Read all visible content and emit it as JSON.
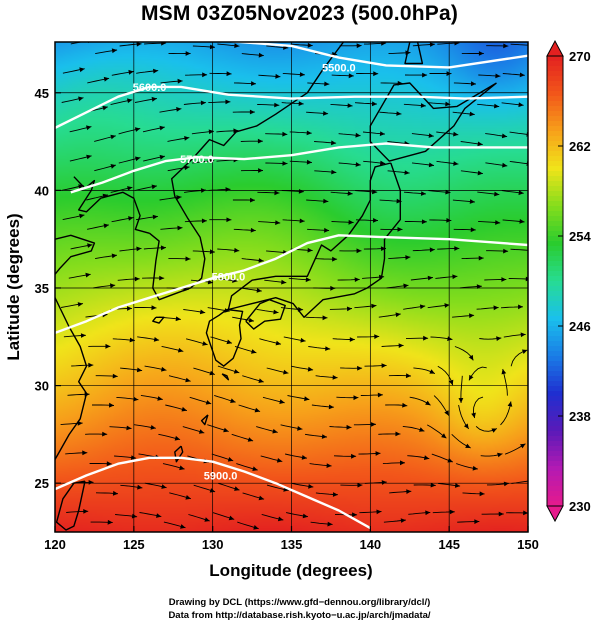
{
  "title": "MSM 03Z05Nov2023 (500.0hPa)",
  "map": {
    "xlabel": "Longitude (degrees)",
    "ylabel": "Latitude  (degrees)",
    "lon_range": [
      120,
      150
    ],
    "lat_range": [
      22.5,
      47.6
    ],
    "lon_ticks": [
      "120",
      "125",
      "130",
      "135",
      "140",
      "145",
      "150"
    ],
    "lat_ticks": [
      "25",
      "30",
      "35",
      "40",
      "45"
    ],
    "grid": true,
    "field": "temperature",
    "streamlines": true,
    "contours": [
      {
        "label": "5500.0",
        "label_lon": 138.0,
        "label_lat": 46.3
      },
      {
        "label": "5600.0",
        "label_lon": 126.0,
        "label_lat": 45.3
      },
      {
        "label": "5700.0",
        "label_lon": 129.0,
        "label_lat": 41.6
      },
      {
        "label": "5800.0",
        "label_lon": 131.0,
        "label_lat": 35.6
      },
      {
        "label": "5900.0",
        "label_lon": 130.5,
        "label_lat": 25.4
      }
    ]
  },
  "colorbar": {
    "min": 230,
    "max": 270,
    "tick_labels": [
      "270",
      "262",
      "254",
      "246",
      "238",
      "230"
    ],
    "colors": [
      "#e61a8c",
      "#b31ab3",
      "#5a1ab8",
      "#1f2fd0",
      "#1a7de6",
      "#1ac0ec",
      "#27dc92",
      "#2acc2e",
      "#85dd1c",
      "#f0e41a",
      "#f7a01a",
      "#f2561a",
      "#e32020"
    ]
  },
  "credits": {
    "line1": "Drawing by DCL (https://www.gfd−dennou.org/library/dcl/)",
    "line2": "Data from http://database.rish.kyoto−u.ac.jp/arch/jmadata/"
  }
}
